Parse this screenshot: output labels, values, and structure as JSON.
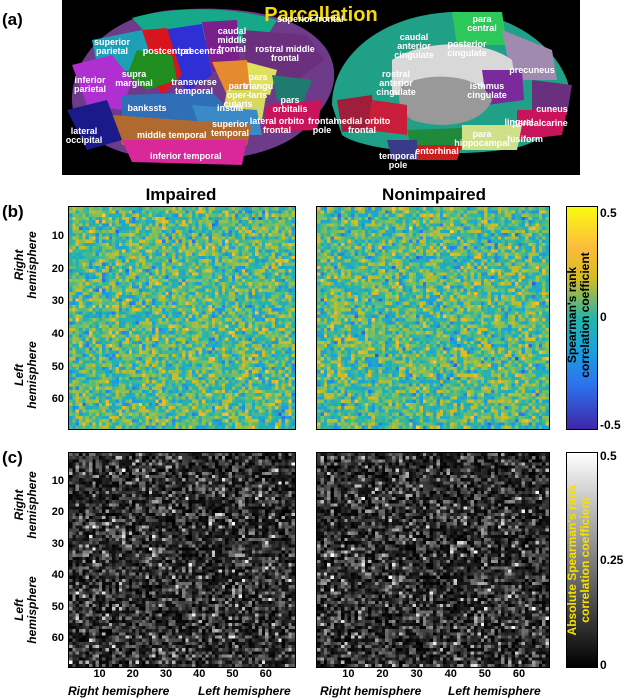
{
  "panels": {
    "a": "(a)",
    "b": "(b)",
    "c": "(c)"
  },
  "parcellation": {
    "title": "Parcellation",
    "lateral_labels": [
      {
        "id": "superior-frontal",
        "text": "superior frontal"
      },
      {
        "id": "caudal-middle-frontal",
        "text": "caudal\nmiddle\nfrontal"
      },
      {
        "id": "superior-parietal",
        "text": "superior\nparietal"
      },
      {
        "id": "postcentral",
        "text": "postcentral"
      },
      {
        "id": "precentral",
        "text": "precentral"
      },
      {
        "id": "rostral-middle-frontal",
        "text": "rostral middle\nfrontal"
      },
      {
        "id": "supramarginal",
        "text": "supra\nmarginal"
      },
      {
        "id": "transverse-temporal",
        "text": "transverse\ntemporal"
      },
      {
        "id": "pars-opercularis",
        "text": "pars\noper-\ncularis"
      },
      {
        "id": "pars-triangularis",
        "text": "pars\ntriangu\nlaris"
      },
      {
        "id": "pars-orbitalis",
        "text": "pars\norbitalis"
      },
      {
        "id": "inferior-parietal",
        "text": "inferior\nparietal"
      },
      {
        "id": "insula",
        "text": "insula"
      },
      {
        "id": "bankssts",
        "text": "bankssts"
      },
      {
        "id": "superior-temporal",
        "text": "superior\ntemporal"
      },
      {
        "id": "lateral-orbitofrontal",
        "text": "lateral orbito\nfrontal"
      },
      {
        "id": "middle-temporal",
        "text": "middle temporal"
      },
      {
        "id": "lateral-occipital",
        "text": "lateral\noccipital"
      },
      {
        "id": "inferior-temporal",
        "text": "inferior temporal"
      }
    ],
    "medial_labels": [
      {
        "id": "paracentral",
        "text": "para\ncentral"
      },
      {
        "id": "precuneus",
        "text": "precuneus"
      },
      {
        "id": "caudal-anterior-cingulate",
        "text": "caudal\nanterior\ncingulate"
      },
      {
        "id": "posterior-cingulate",
        "text": "posterior\ncingulate"
      },
      {
        "id": "rostral-anterior-cingulate",
        "text": "rostral\nanterior\ncingulate"
      },
      {
        "id": "isthmus-cingulate",
        "text": "isthmus\ncingulate"
      },
      {
        "id": "cuneus",
        "text": "cuneus"
      },
      {
        "id": "pericalcarine",
        "text": "pericalcarine"
      },
      {
        "id": "frontal-pole",
        "text": "frontal\npole"
      },
      {
        "id": "medial-orbitofrontal",
        "text": "medial orbito\nfrontal"
      },
      {
        "id": "parahippocampal",
        "text": "para\nhippocampal"
      },
      {
        "id": "lingual",
        "text": "lingual"
      },
      {
        "id": "fusiform",
        "text": "fusiform"
      },
      {
        "id": "entorhinal",
        "text": "entorhinal"
      },
      {
        "id": "temporal-pole",
        "text": "temporal\npole"
      }
    ]
  },
  "matrices": {
    "size": 68,
    "column_titles": {
      "impaired": "Impaired",
      "nonimpaired": "Nonimpaired"
    },
    "y_ticks": [
      "10",
      "20",
      "30",
      "40",
      "50",
      "60"
    ],
    "x_ticks": [
      "10",
      "20",
      "30",
      "40",
      "50",
      "60"
    ],
    "row_group_labels": {
      "right": "Right\nhemisphere",
      "left": "Left\nhemisphere"
    },
    "x_group_labels": {
      "right": "Right hemisphere",
      "left": "Left hemisphere"
    }
  },
  "colorbar_b": {
    "label": "Spearman's rank\ncorrelation coefficient",
    "ticks": [
      "0.5",
      "0",
      "-0.5"
    ],
    "colors": {
      "high": "#f9fb0e",
      "mid": "#26b5a8",
      "low": "#3e26a8"
    }
  },
  "colorbar_c": {
    "label": "Absolute Spearman's rank\ncorrelation coefficient",
    "ticks": [
      "0.5",
      "0.25",
      "0"
    ],
    "label_color": "#f5e000"
  }
}
